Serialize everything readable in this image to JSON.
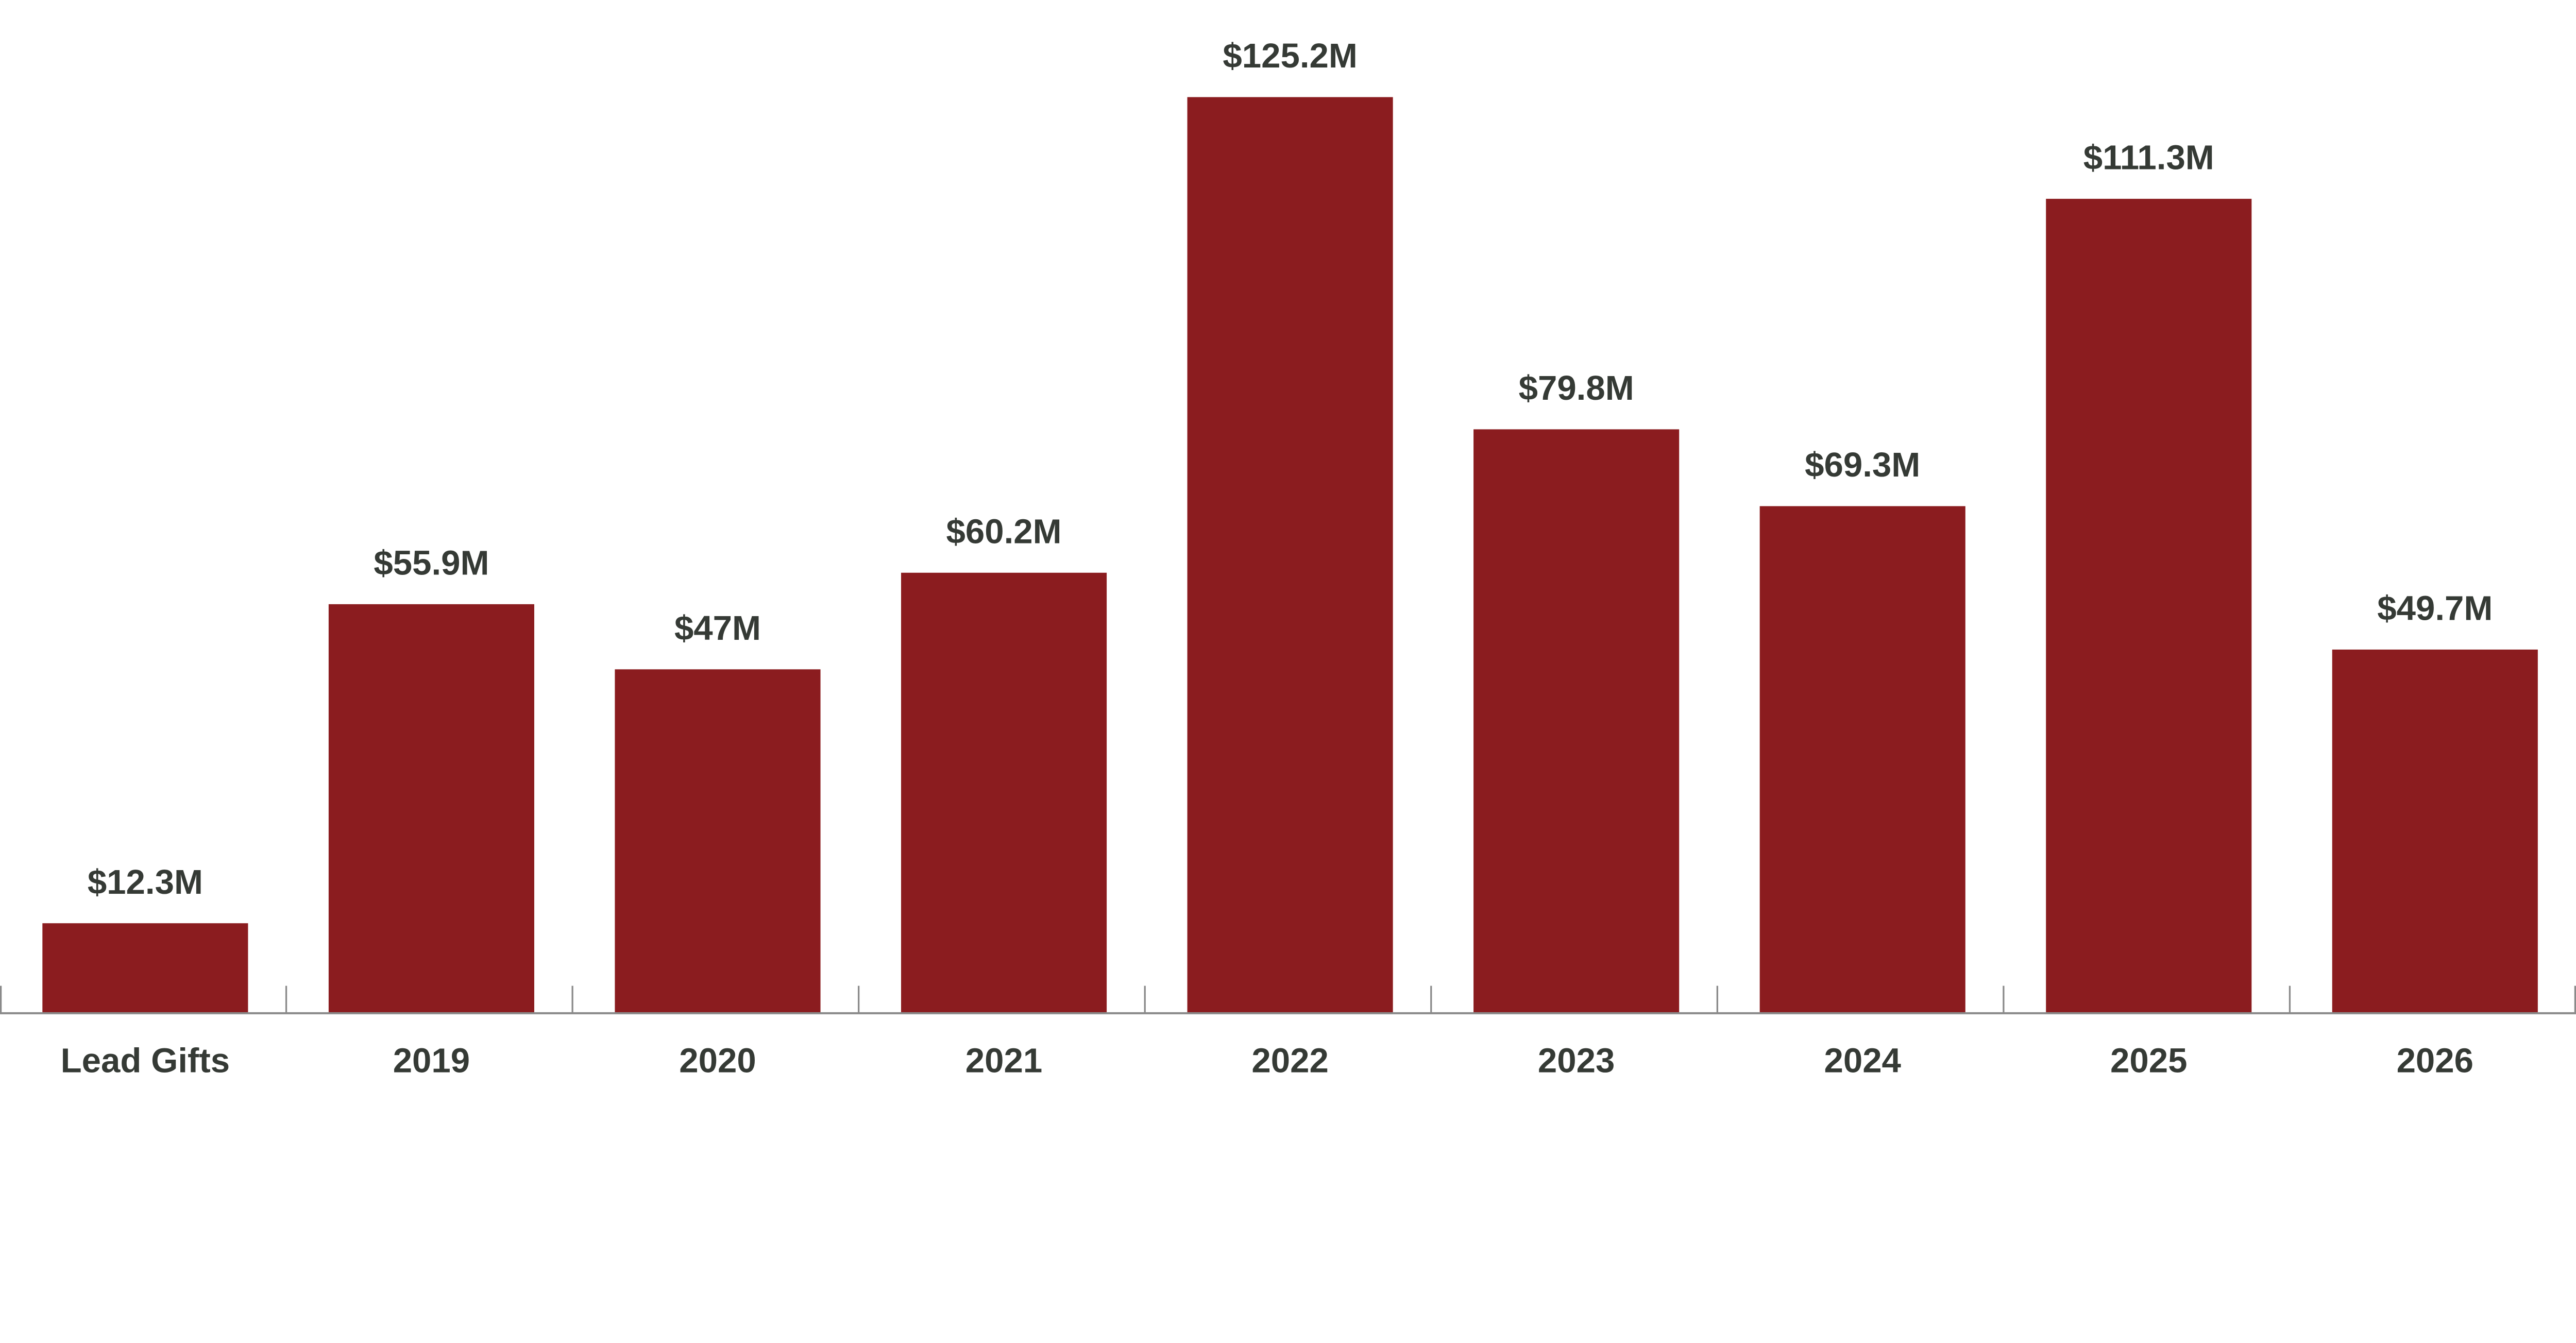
{
  "chart_data": {
    "type": "bar",
    "title": "",
    "xlabel": "",
    "ylabel": "",
    "categories": [
      "Lead Gifts",
      "2019",
      "2020",
      "2021",
      "2022",
      "2023",
      "2024",
      "2025",
      "2026"
    ],
    "values": [
      12.3,
      55.9,
      47,
      60.2,
      125.2,
      79.8,
      69.3,
      111.3,
      49.7
    ],
    "data_labels": [
      "$12.3M",
      "$55.9M",
      "$47M",
      "$60.2M",
      "$125.2M",
      "$79.8M",
      "$69.3M",
      "$111.3M",
      "$49.7M"
    ],
    "unit": "$M",
    "ylim": [
      0,
      125.2
    ],
    "grid": false,
    "legend": "none",
    "colors": {
      "bar": "#8b1c1f",
      "text": "#353a35",
      "axis": "#8a8a8a"
    }
  }
}
